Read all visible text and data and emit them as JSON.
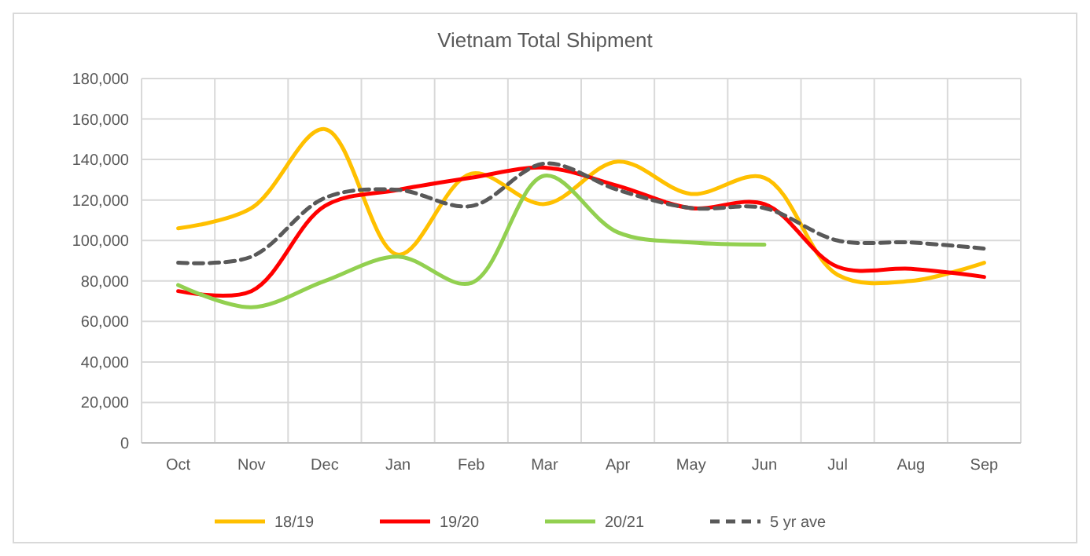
{
  "chart_data": {
    "type": "line",
    "title": "Vietnam Total Shipment",
    "categories": [
      "Oct",
      "Nov",
      "Dec",
      "Jan",
      "Feb",
      "Mar",
      "Apr",
      "May",
      "Jun",
      "Jul",
      "Aug",
      "Sep"
    ],
    "series": [
      {
        "name": "18/19",
        "color": "#ffc000",
        "values": [
          106000,
          116000,
          155000,
          93000,
          133000,
          118000,
          139000,
          123000,
          131000,
          83000,
          80000,
          89000
        ]
      },
      {
        "name": "19/20",
        "color": "#ff0000",
        "values": [
          75000,
          75000,
          117000,
          125000,
          131000,
          136000,
          127000,
          116000,
          118000,
          87000,
          86000,
          82000
        ]
      },
      {
        "name": "20/21",
        "color": "#92d050",
        "values": [
          78000,
          67000,
          80000,
          92000,
          79000,
          132000,
          104000,
          99000,
          98000,
          null,
          null,
          null
        ]
      },
      {
        "name": "5 yr ave",
        "color": "#595959",
        "line_style": "dashed",
        "values": [
          89000,
          92000,
          121000,
          125000,
          117000,
          138000,
          125000,
          116000,
          116000,
          100000,
          99000,
          96000
        ]
      }
    ],
    "ylim": [
      0,
      180000
    ],
    "yticks": [
      {
        "value": 0,
        "label": "0"
      },
      {
        "value": 20000,
        "label": "20,000"
      },
      {
        "value": 40000,
        "label": "40,000"
      },
      {
        "value": 60000,
        "label": "60,000"
      },
      {
        "value": 80000,
        "label": "80,000"
      },
      {
        "value": 100000,
        "label": "100,000"
      },
      {
        "value": 120000,
        "label": "120,000"
      },
      {
        "value": 140000,
        "label": "140,000"
      },
      {
        "value": 160000,
        "label": "160,000"
      },
      {
        "value": 180000,
        "label": "180,000"
      }
    ],
    "grid": true,
    "legend": "bottom",
    "marker": "none"
  }
}
